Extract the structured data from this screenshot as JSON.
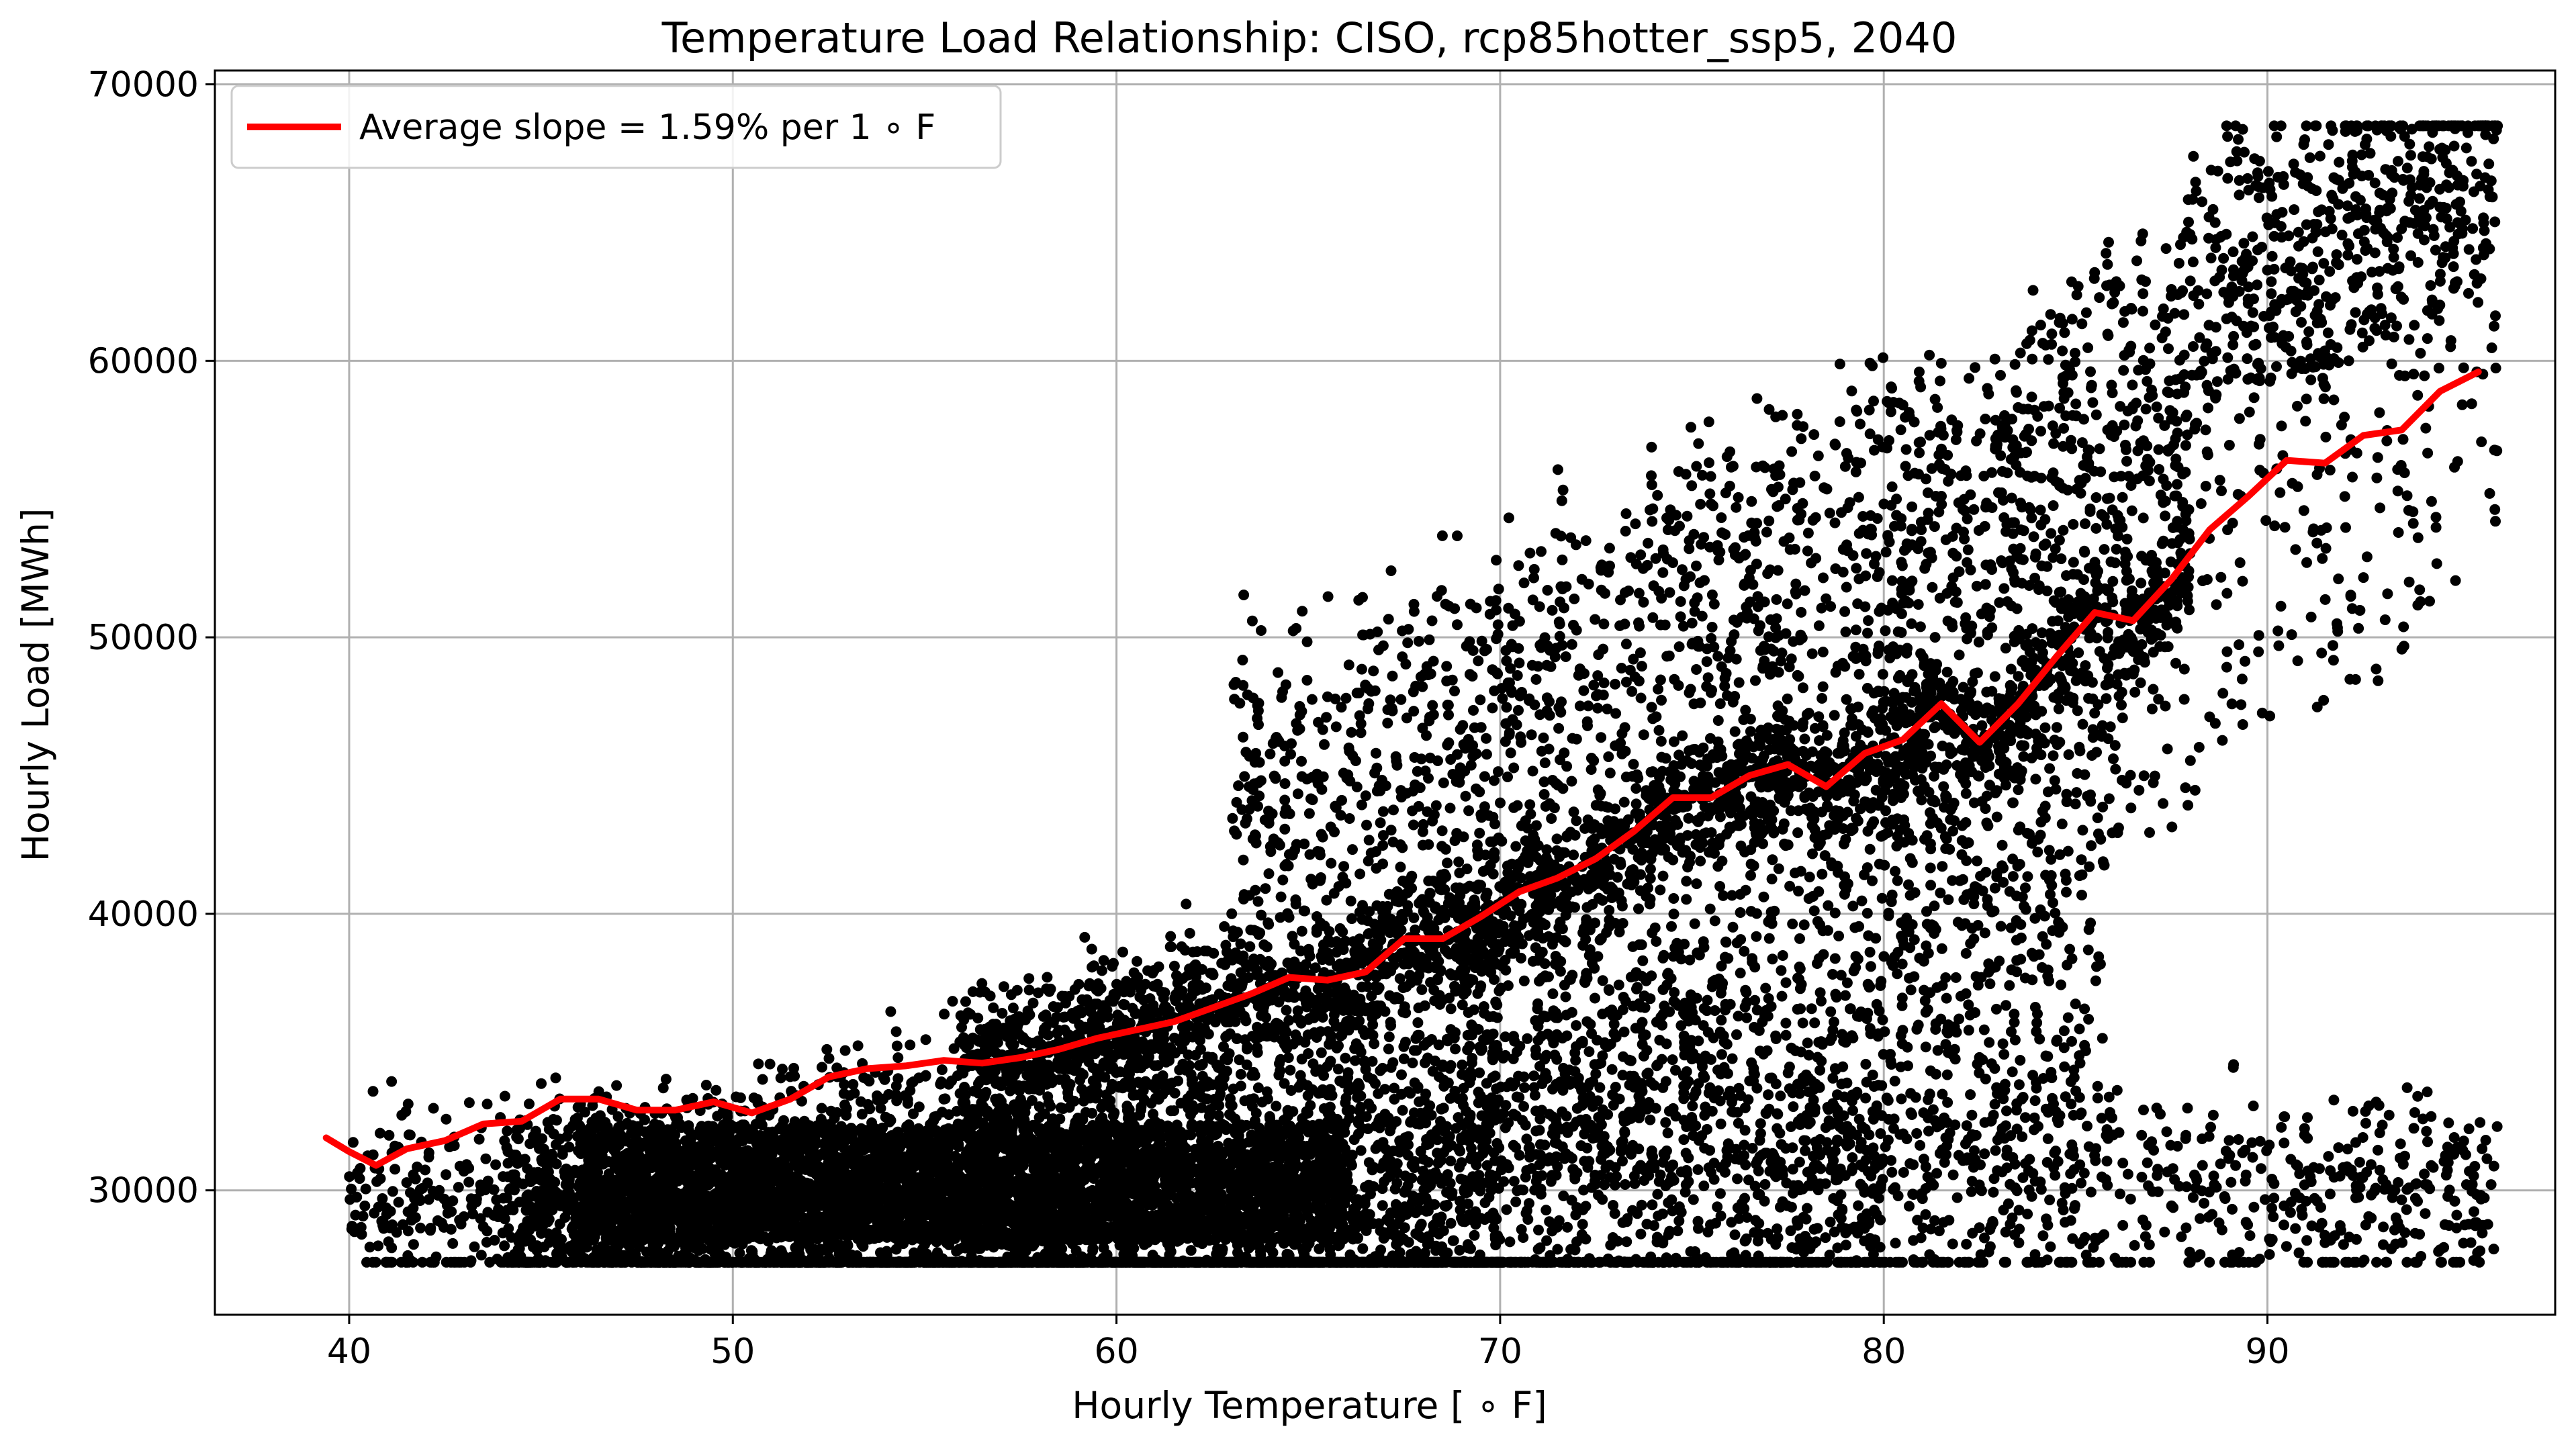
{
  "chart_data": {
    "type": "scatter",
    "title": "Temperature Load Relationship: CISO, rcp85hotter_ssp5, 2040",
    "xlabel": "Hourly Temperature [ ∘ F]",
    "ylabel": "Hourly Load [MWh]",
    "xlim": [
      36.5,
      97.5
    ],
    "ylim": [
      25500,
      70500
    ],
    "xticks": [
      40,
      50,
      60,
      70,
      80,
      90
    ],
    "yticks": [
      30000,
      40000,
      50000,
      60000,
      70000
    ],
    "grid": true,
    "legend_position": "top-left",
    "scatter_color": "#000000",
    "series": [
      {
        "name": "Average slope = 1.59% per 1 ∘ F",
        "type": "line",
        "color": "#ff0000",
        "x": [
          39.4,
          40.0,
          40.7,
          41.5,
          42.5,
          43.5,
          44.5,
          45.5,
          46.5,
          47.5,
          48.5,
          49.5,
          50.5,
          51.5,
          52.5,
          53.5,
          54.5,
          55.5,
          56.5,
          57.5,
          58.5,
          59.5,
          60.5,
          61.5,
          62.5,
          63.5,
          64.5,
          65.5,
          66.5,
          67.5,
          68.5,
          69.5,
          70.5,
          71.5,
          72.5,
          73.5,
          74.5,
          75.5,
          76.5,
          77.5,
          78.5,
          79.5,
          80.5,
          81.5,
          82.5,
          83.5,
          84.5,
          85.5,
          86.5,
          87.5,
          88.5,
          89.5,
          90.5,
          91.5,
          92.5,
          93.5,
          94.5,
          95.5
        ],
        "y": [
          31900,
          31400,
          30900,
          31500,
          31800,
          32400,
          32500,
          33300,
          33300,
          32900,
          32900,
          33200,
          32800,
          33300,
          34100,
          34400,
          34500,
          34700,
          34600,
          34800,
          35100,
          35500,
          35800,
          36100,
          36600,
          37100,
          37700,
          37600,
          37900,
          39100,
          39100,
          39900,
          40800,
          41300,
          42000,
          43000,
          44200,
          44200,
          45000,
          45400,
          44600,
          45800,
          46300,
          47600,
          46200,
          47600,
          49300,
          50900,
          50600,
          52100,
          53900,
          55100,
          56400,
          56300,
          57300,
          57500,
          58900,
          59600
        ]
      }
    ]
  }
}
